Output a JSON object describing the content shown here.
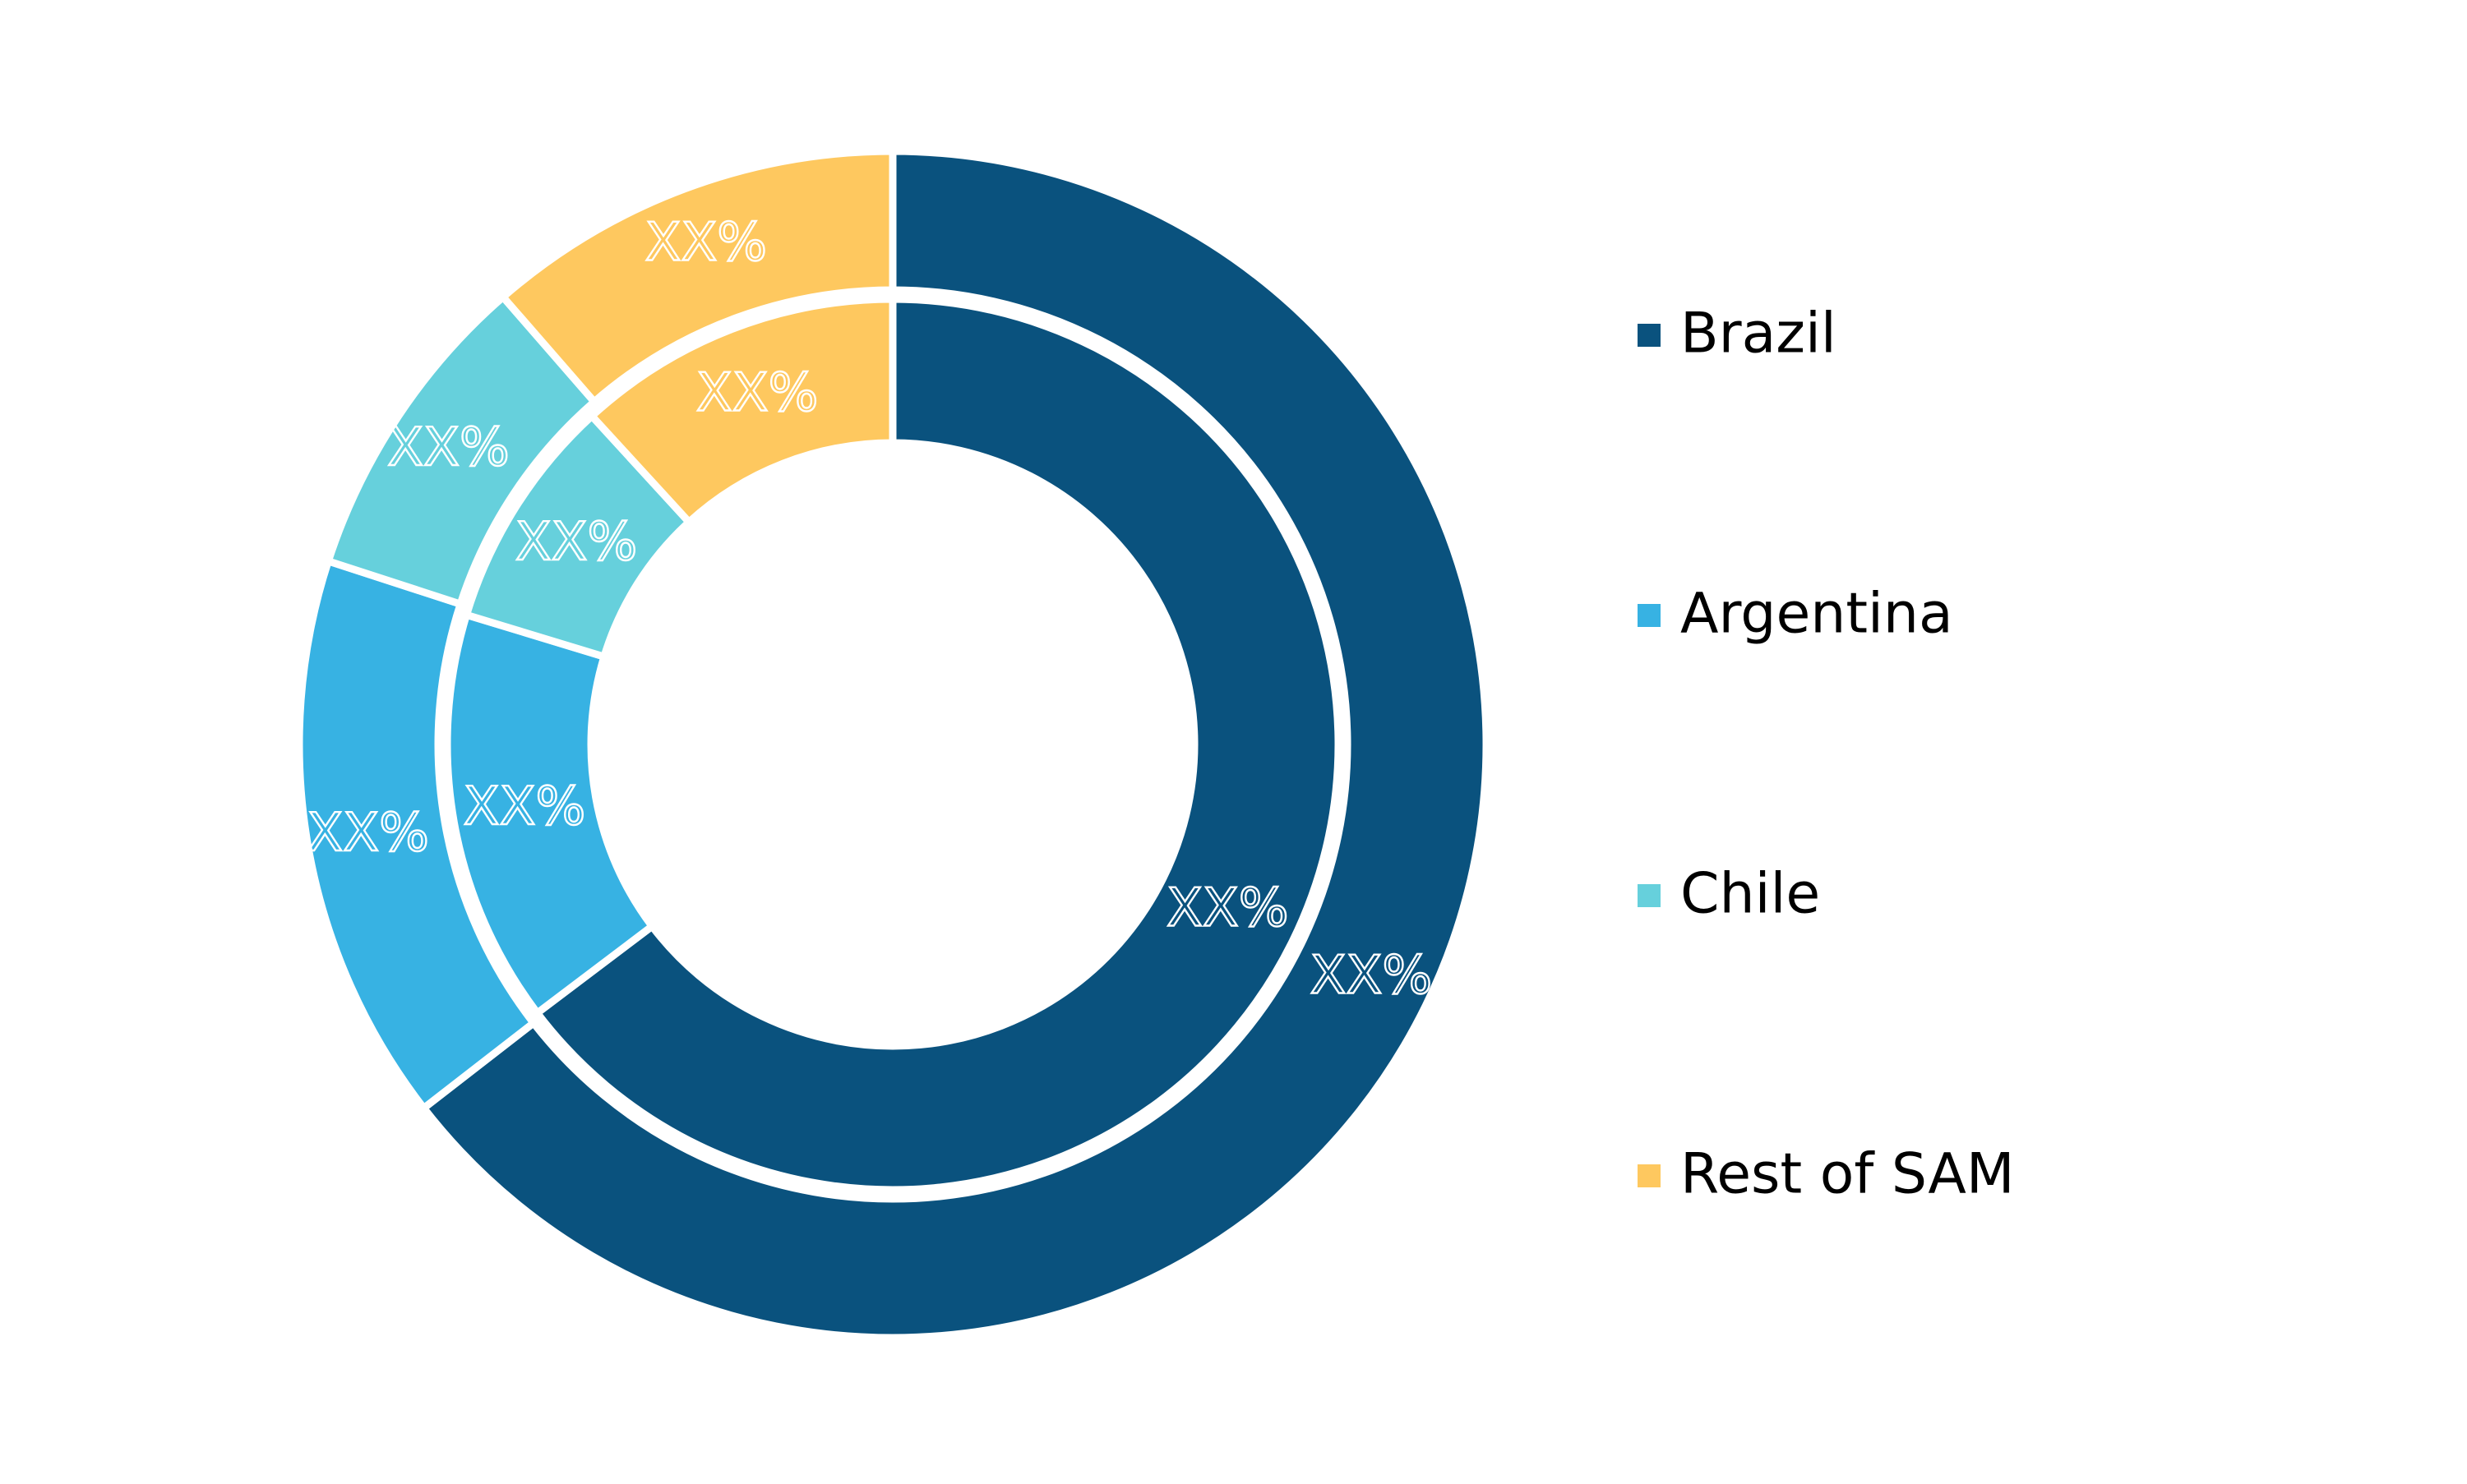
{
  "chart_data": {
    "type": "pie",
    "variant": "nested-donut",
    "title": "",
    "categories": [
      "Brazil",
      "Argentina",
      "Chile",
      "Rest of SAM"
    ],
    "colors": [
      "#0a527e",
      "#37b2e3",
      "#66d0dc",
      "#fec85f"
    ],
    "series": [
      {
        "ring": "outer",
        "values": [
          64.5,
          15.5,
          8.6,
          11.4
        ],
        "labels": [
          "XX%",
          "XX%",
          "XX%",
          "XX%"
        ]
      },
      {
        "ring": "inner",
        "values": [
          64.7,
          15.0,
          8.5,
          11.8
        ],
        "labels": [
          "XX%",
          "XX%",
          "XX%",
          "XX%"
        ]
      }
    ],
    "legend": {
      "position": "right",
      "items": [
        "Brazil",
        "Argentina",
        "Chile",
        "Rest of SAM"
      ]
    }
  }
}
